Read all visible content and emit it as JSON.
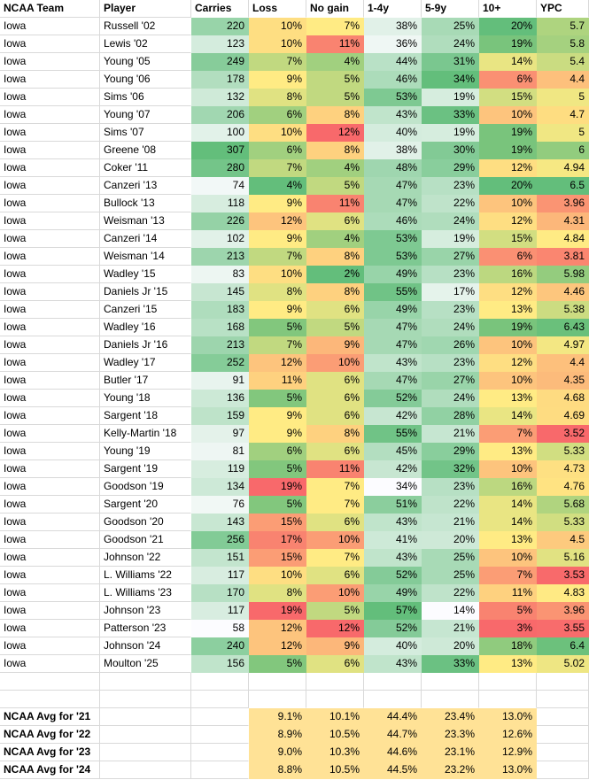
{
  "sheet": {
    "columns": [
      "NCAA Team",
      "Player",
      "Carries",
      "Loss",
      "No gain",
      "1-4y",
      "5-9y",
      "10+",
      "YPC"
    ],
    "team_name": "Iowa"
  },
  "rows": [
    {
      "team": "Iowa",
      "player": "Russell '02",
      "carries": 220,
      "loss": 10,
      "nogain": 7,
      "y14": 38,
      "y59": 25,
      "y10": 20,
      "ypc": 5.7
    },
    {
      "team": "Iowa",
      "player": "Lewis '02",
      "carries": 123,
      "loss": 10,
      "nogain": 11,
      "y14": 36,
      "y59": 24,
      "y10": 19,
      "ypc": 5.8
    },
    {
      "team": "Iowa",
      "player": "Young '05",
      "carries": 249,
      "loss": 7,
      "nogain": 4,
      "y14": 44,
      "y59": 31,
      "y10": 14,
      "ypc": 5.4
    },
    {
      "team": "Iowa",
      "player": "Young '06",
      "carries": 178,
      "loss": 9,
      "nogain": 5,
      "y14": 46,
      "y59": 34,
      "y10": 6,
      "ypc": 4.4
    },
    {
      "team": "Iowa",
      "player": "Sims '06",
      "carries": 132,
      "loss": 8,
      "nogain": 5,
      "y14": 53,
      "y59": 19,
      "y10": 15,
      "ypc": 5
    },
    {
      "team": "Iowa",
      "player": "Young '07",
      "carries": 206,
      "loss": 6,
      "nogain": 8,
      "y14": 43,
      "y59": 33,
      "y10": 10,
      "ypc": 4.7
    },
    {
      "team": "Iowa",
      "player": "Sims '07",
      "carries": 100,
      "loss": 10,
      "nogain": 12,
      "y14": 40,
      "y59": 19,
      "y10": 19,
      "ypc": 5
    },
    {
      "team": "Iowa",
      "player": "Greene '08",
      "carries": 307,
      "loss": 6,
      "nogain": 8,
      "y14": 38,
      "y59": 30,
      "y10": 19,
      "ypc": 6
    },
    {
      "team": "Iowa",
      "player": "Coker '11",
      "carries": 280,
      "loss": 7,
      "nogain": 4,
      "y14": 48,
      "y59": 29,
      "y10": 12,
      "ypc": 4.94
    },
    {
      "team": "Iowa",
      "player": "Canzeri '13",
      "carries": 74,
      "loss": 4,
      "nogain": 5,
      "y14": 47,
      "y59": 23,
      "y10": 20,
      "ypc": 6.5
    },
    {
      "team": "Iowa",
      "player": "Bullock '13",
      "carries": 118,
      "loss": 9,
      "nogain": 11,
      "y14": 47,
      "y59": 22,
      "y10": 10,
      "ypc": 3.96
    },
    {
      "team": "Iowa",
      "player": "Weisman '13",
      "carries": 226,
      "loss": 12,
      "nogain": 6,
      "y14": 46,
      "y59": 24,
      "y10": 12,
      "ypc": 4.31
    },
    {
      "team": "Iowa",
      "player": "Canzeri '14",
      "carries": 102,
      "loss": 9,
      "nogain": 4,
      "y14": 53,
      "y59": 19,
      "y10": 15,
      "ypc": 4.84
    },
    {
      "team": "Iowa",
      "player": "Weisman '14",
      "carries": 213,
      "loss": 7,
      "nogain": 8,
      "y14": 53,
      "y59": 27,
      "y10": 6,
      "ypc": 3.81
    },
    {
      "team": "Iowa",
      "player": "Wadley '15",
      "carries": 83,
      "loss": 10,
      "nogain": 2,
      "y14": 49,
      "y59": 23,
      "y10": 16,
      "ypc": 5.98
    },
    {
      "team": "Iowa",
      "player": "Daniels Jr '15",
      "carries": 145,
      "loss": 8,
      "nogain": 8,
      "y14": 55,
      "y59": 17,
      "y10": 12,
      "ypc": 4.46
    },
    {
      "team": "Iowa",
      "player": "Canzeri '15",
      "carries": 183,
      "loss": 9,
      "nogain": 6,
      "y14": 49,
      "y59": 23,
      "y10": 13,
      "ypc": 5.38
    },
    {
      "team": "Iowa",
      "player": "Wadley '16",
      "carries": 168,
      "loss": 5,
      "nogain": 5,
      "y14": 47,
      "y59": 24,
      "y10": 19,
      "ypc": 6.43
    },
    {
      "team": "Iowa",
      "player": "Daniels Jr '16",
      "carries": 213,
      "loss": 7,
      "nogain": 9,
      "y14": 47,
      "y59": 26,
      "y10": 10,
      "ypc": 4.97
    },
    {
      "team": "Iowa",
      "player": "Wadley '17",
      "carries": 252,
      "loss": 12,
      "nogain": 10,
      "y14": 43,
      "y59": 23,
      "y10": 12,
      "ypc": 4.4
    },
    {
      "team": "Iowa",
      "player": "Butler '17",
      "carries": 91,
      "loss": 11,
      "nogain": 6,
      "y14": 47,
      "y59": 27,
      "y10": 10,
      "ypc": 4.35
    },
    {
      "team": "Iowa",
      "player": "Young '18",
      "carries": 136,
      "loss": 5,
      "nogain": 6,
      "y14": 52,
      "y59": 24,
      "y10": 13,
      "ypc": 4.68
    },
    {
      "team": "Iowa",
      "player": "Sargent '18",
      "carries": 159,
      "loss": 9,
      "nogain": 6,
      "y14": 42,
      "y59": 28,
      "y10": 14,
      "ypc": 4.69
    },
    {
      "team": "Iowa",
      "player": "Kelly-Martin '18",
      "carries": 97,
      "loss": 9,
      "nogain": 8,
      "y14": 55,
      "y59": 21,
      "y10": 7,
      "ypc": 3.52
    },
    {
      "team": "Iowa",
      "player": "Young '19",
      "carries": 81,
      "loss": 6,
      "nogain": 6,
      "y14": 45,
      "y59": 29,
      "y10": 13,
      "ypc": 5.33
    },
    {
      "team": "Iowa",
      "player": "Sargent '19",
      "carries": 119,
      "loss": 5,
      "nogain": 11,
      "y14": 42,
      "y59": 32,
      "y10": 10,
      "ypc": 4.73
    },
    {
      "team": "Iowa",
      "player": "Goodson '19",
      "carries": 134,
      "loss": 19,
      "nogain": 7,
      "y14": 34,
      "y59": 23,
      "y10": 16,
      "ypc": 4.76
    },
    {
      "team": "Iowa",
      "player": "Sargent '20",
      "carries": 76,
      "loss": 5,
      "nogain": 7,
      "y14": 51,
      "y59": 22,
      "y10": 14,
      "ypc": 5.68
    },
    {
      "team": "Iowa",
      "player": "Goodson '20",
      "carries": 143,
      "loss": 15,
      "nogain": 6,
      "y14": 43,
      "y59": 21,
      "y10": 14,
      "ypc": 5.33
    },
    {
      "team": "Iowa",
      "player": "Goodson '21",
      "carries": 256,
      "loss": 17,
      "nogain": 10,
      "y14": 41,
      "y59": 20,
      "y10": 13,
      "ypc": 4.5
    },
    {
      "team": "Iowa",
      "player": "Johnson '22",
      "carries": 151,
      "loss": 15,
      "nogain": 7,
      "y14": 43,
      "y59": 25,
      "y10": 10,
      "ypc": 5.16
    },
    {
      "team": "Iowa",
      "player": "L. Williams '22",
      "carries": 117,
      "loss": 10,
      "nogain": 6,
      "y14": 52,
      "y59": 25,
      "y10": 7,
      "ypc": 3.53
    },
    {
      "team": "Iowa",
      "player": "L. Williams '23",
      "carries": 170,
      "loss": 8,
      "nogain": 10,
      "y14": 49,
      "y59": 22,
      "y10": 11,
      "ypc": 4.83
    },
    {
      "team": "Iowa",
      "player": "Johnson '23",
      "carries": 117,
      "loss": 19,
      "nogain": 5,
      "y14": 57,
      "y59": 14,
      "y10": 5,
      "ypc": 3.96
    },
    {
      "team": "Iowa",
      "player": "Patterson '23",
      "carries": 58,
      "loss": 12,
      "nogain": 12,
      "y14": 52,
      "y59": 21,
      "y10": 3,
      "ypc": 3.55
    },
    {
      "team": "Iowa",
      "player": "Johnson '24",
      "carries": 240,
      "loss": 12,
      "nogain": 9,
      "y14": 40,
      "y59": 20,
      "y10": 18,
      "ypc": 6.4
    },
    {
      "team": "Iowa",
      "player": "Moulton '25",
      "carries": 156,
      "loss": 5,
      "nogain": 6,
      "y14": 43,
      "y59": 33,
      "y10": 13,
      "ypc": 5.02
    }
  ],
  "empty_rows": 2,
  "averages": [
    {
      "label": "NCAA Avg for '21",
      "loss": 9.1,
      "nogain": 10.1,
      "y14": 44.4,
      "y59": 23.4,
      "y10": 13.0
    },
    {
      "label": "NCAA Avg for '22",
      "loss": 8.9,
      "nogain": 10.5,
      "y14": 44.7,
      "y59": 23.3,
      "y10": 12.6
    },
    {
      "label": "NCAA Avg for '23",
      "loss": 9.0,
      "nogain": 10.3,
      "y14": 44.6,
      "y59": 23.1,
      "y10": 12.9
    },
    {
      "label": "NCAA Avg for '24",
      "loss": 8.8,
      "nogain": 10.5,
      "y14": 44.5,
      "y59": 23.2,
      "y10": 13.0
    }
  ],
  "scales": {
    "carries": {
      "kind": "white-green"
    },
    "loss": {
      "kind": "green-yellow-red"
    },
    "nogain": {
      "kind": "green-yellow-red"
    },
    "y14": {
      "kind": "white-green"
    },
    "y59": {
      "kind": "white-green"
    },
    "y10": {
      "kind": "red-yellow-green"
    },
    "ypc": {
      "kind": "red-yellow-green"
    }
  },
  "colors": {
    "scale_red": "#F8696B",
    "scale_yellow": "#FFEB84",
    "scale_green": "#63BE7B",
    "scale_white": "#FCFCFF",
    "avg_fill": "#FFE296",
    "gridline": "#D9D9D9",
    "background": "#FFFFFF",
    "text": "#000000"
  }
}
